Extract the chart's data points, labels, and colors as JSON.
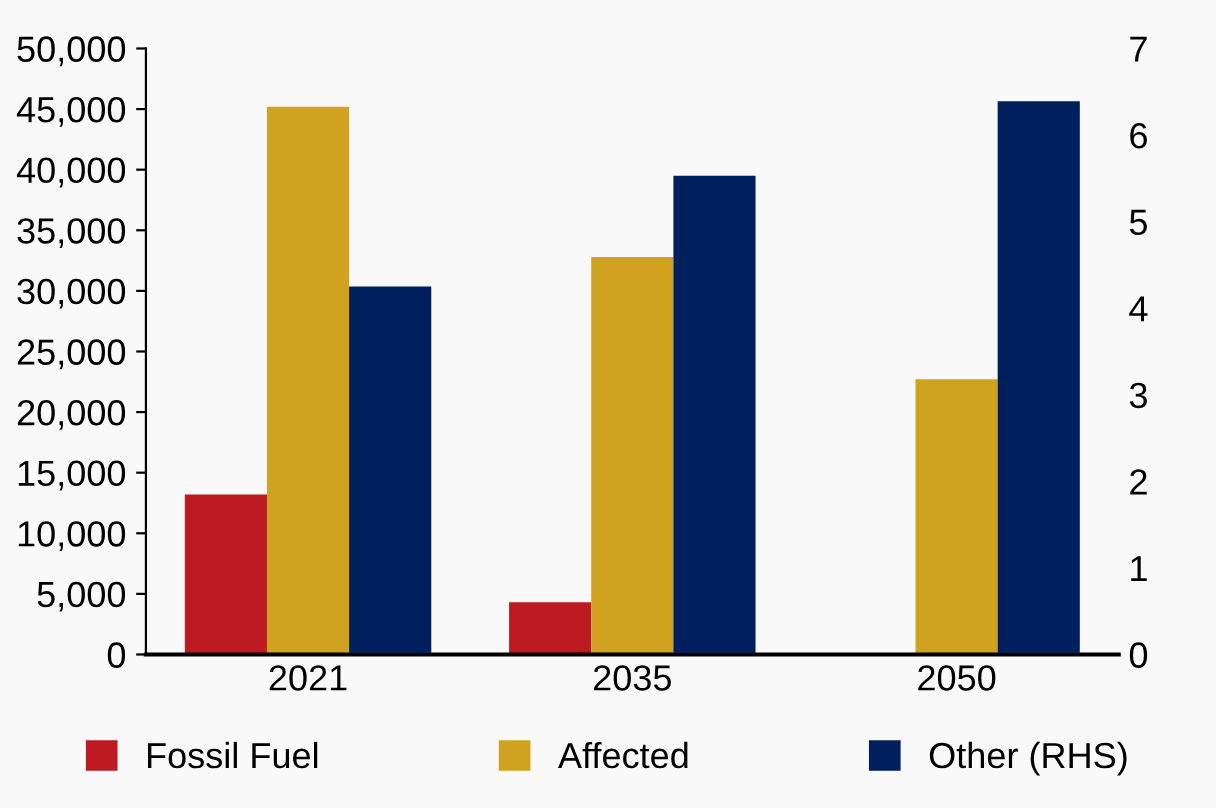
{
  "chart_data": {
    "type": "bar",
    "categories": [
      "2021",
      "2035",
      "2050"
    ],
    "series": [
      {
        "name": "Fossil Fuel",
        "color": "#be1a22",
        "values": [
          13200,
          4300,
          0
        ]
      },
      {
        "name": "Affected",
        "color": "#d0a220",
        "values": [
          45200,
          32800,
          22700
        ]
      },
      {
        "name": "Other (RHS)",
        "color": "#001f5c",
        "values": [
          4.25,
          5.53,
          6.39
        ],
        "axis": "y2"
      }
    ],
    "ylim": [
      0,
      50000
    ],
    "yticks": [
      {
        "value": 0,
        "label": "0"
      },
      {
        "value": 5000,
        "label": "5,000"
      },
      {
        "value": 10000,
        "label": "10,000"
      },
      {
        "value": 15000,
        "label": "15,000"
      },
      {
        "value": 20000,
        "label": "20,000"
      },
      {
        "value": 25000,
        "label": "25,000"
      },
      {
        "value": 30000,
        "label": "30,000"
      },
      {
        "value": 35000,
        "label": "35,000"
      },
      {
        "value": 40000,
        "label": "40,000"
      },
      {
        "value": 45000,
        "label": "45,000"
      },
      {
        "value": 50000,
        "label": "50,000"
      }
    ],
    "y2lim": [
      0,
      7
    ],
    "y2ticks": [
      0,
      1,
      2,
      3,
      4,
      5,
      6,
      7
    ],
    "legend": "bottom",
    "grid": false
  }
}
